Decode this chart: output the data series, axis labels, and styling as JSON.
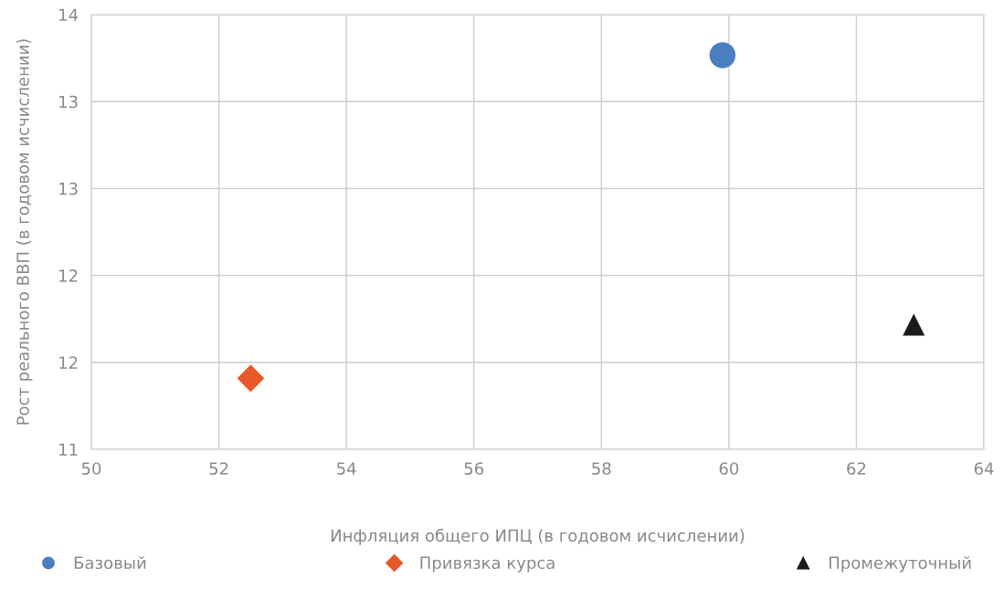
{
  "chart_data": {
    "type": "scatter",
    "xlabel": "Инфляция общего ИПЦ (в годовом исчислении)",
    "ylabel": "Рост реального ВВП (в годовом исчислении)",
    "xlim": [
      50,
      64
    ],
    "xticks": [
      50,
      52,
      54,
      56,
      58,
      60,
      62,
      64
    ],
    "ylim": [
      11,
      14
    ],
    "yticks": [
      {
        "value": 11,
        "label": "11"
      },
      {
        "value": 11.6,
        "label": "12"
      },
      {
        "value": 12.2,
        "label": "12"
      },
      {
        "value": 12.8,
        "label": "13"
      },
      {
        "value": 13.4,
        "label": "13"
      },
      {
        "value": 14,
        "label": "14"
      }
    ],
    "grid": true,
    "legend": "bottom",
    "series": [
      {
        "name": "Базовый",
        "color": "#4a7ebf",
        "marker": "circle",
        "x": [
          59.9
        ],
        "values": [
          13.72
        ]
      },
      {
        "name": "Привязка курса",
        "color": "#e8582a",
        "marker": "diamond",
        "x": [
          52.5
        ],
        "values": [
          11.49
        ]
      },
      {
        "name": "Промежуточный",
        "color": "#1a1a1a",
        "marker": "triangle",
        "x": [
          62.9
        ],
        "values": [
          11.86
        ]
      }
    ]
  }
}
